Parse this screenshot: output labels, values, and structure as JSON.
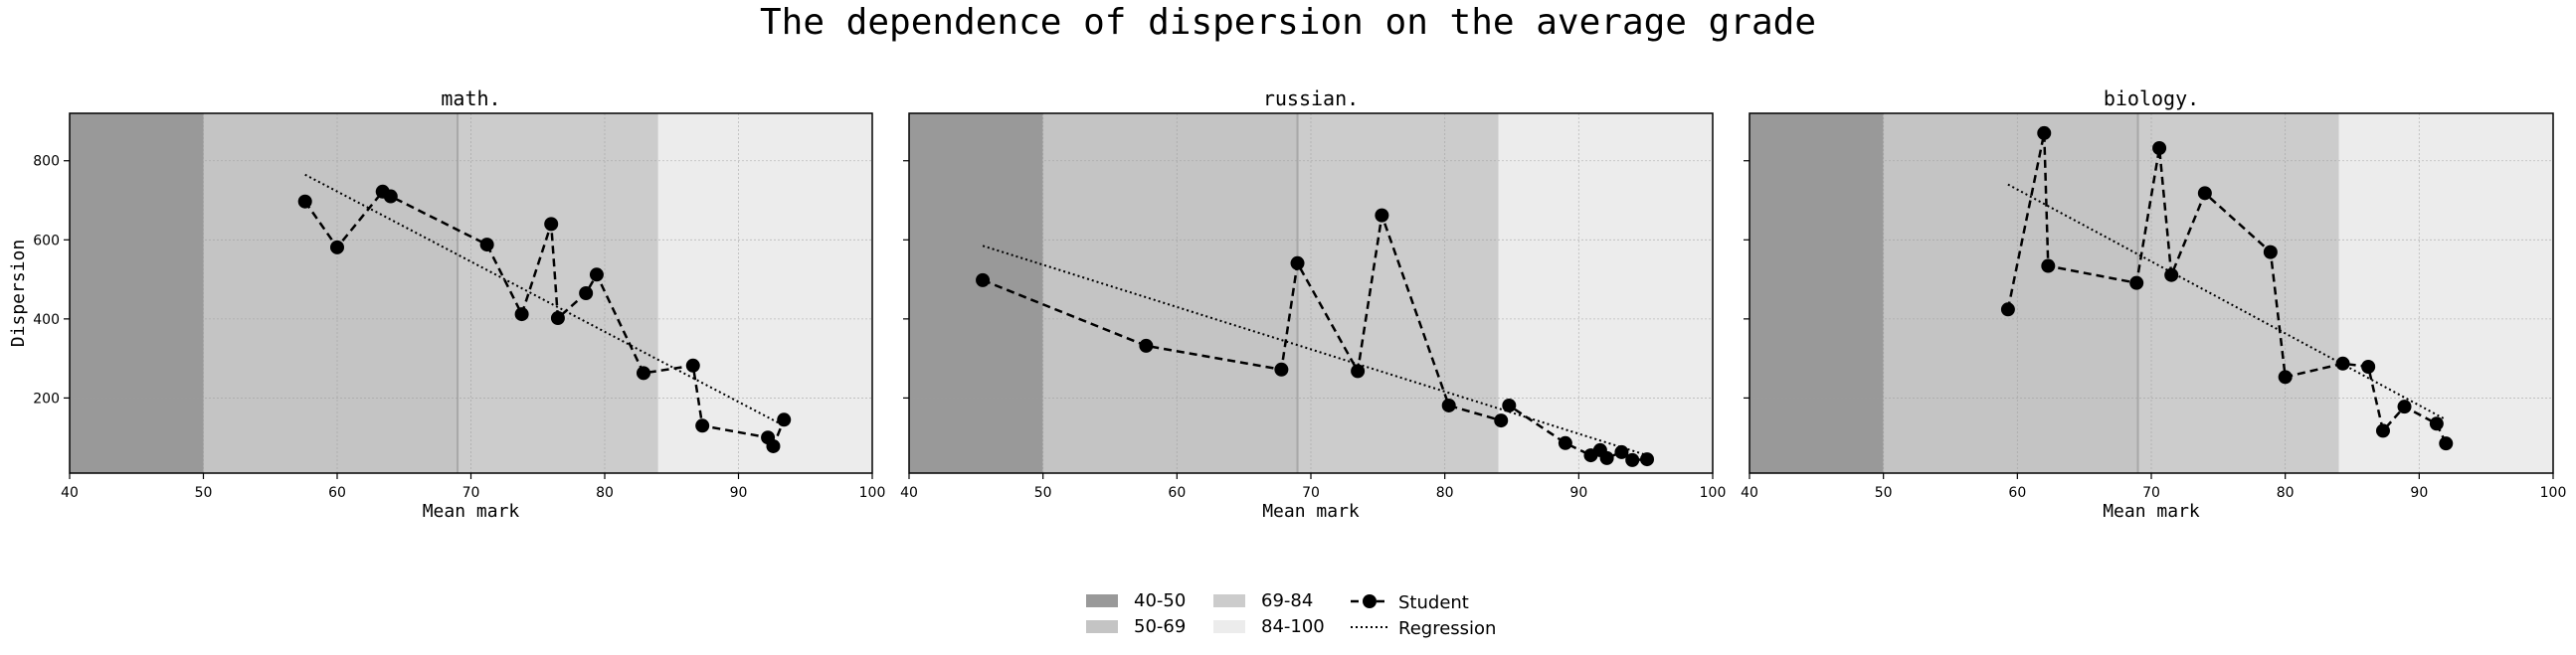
{
  "figure": {
    "title": "The dependence of dispersion on the average grade"
  },
  "legend": {
    "bands": [
      {
        "label": "40-50",
        "color": "#999999"
      },
      {
        "label": "50-69",
        "color": "#c4c4c4"
      },
      {
        "label": "69-84",
        "color": "#cccccc"
      },
      {
        "label": "84-100",
        "color": "#ececec"
      }
    ],
    "student_label": "Student",
    "regression_label": "Regression"
  },
  "chart_data": [
    {
      "type": "line",
      "title": "math.",
      "xlabel": "Mean mark",
      "ylabel": "Dispersion",
      "xlim": [
        40,
        100
      ],
      "ylim": [
        10,
        920
      ],
      "xticks": [
        40,
        50,
        60,
        70,
        80,
        90,
        100
      ],
      "yticks": [
        200,
        400,
        600,
        800
      ],
      "grid": true,
      "bands": [
        {
          "label": "40-50",
          "from": 40,
          "to": 50,
          "color": "#999999"
        },
        {
          "label": "50-69",
          "from": 50,
          "to": 69,
          "color": "#c4c4c4"
        },
        {
          "label": "69-84",
          "from": 69,
          "to": 84,
          "color": "#cccccc"
        },
        {
          "label": "84-100",
          "from": 84,
          "to": 100,
          "color": "#ececec"
        }
      ],
      "series": [
        {
          "name": "Student",
          "style": "dashed-marker",
          "x": [
            57.6,
            60.0,
            63.4,
            64.0,
            71.2,
            73.8,
            76.0,
            76.5,
            78.6,
            79.4,
            82.9,
            86.6,
            87.3,
            92.2,
            92.6,
            93.4
          ],
          "y": [
            697,
            581,
            722,
            710,
            588,
            412,
            640,
            402,
            465,
            512,
            263,
            282,
            130,
            100,
            78,
            145
          ]
        },
        {
          "name": "Regression",
          "style": "dotted",
          "x": [
            57.6,
            93.4
          ],
          "y": [
            765,
            130
          ]
        }
      ]
    },
    {
      "type": "line",
      "title": "russian.",
      "xlabel": "Mean mark",
      "ylabel": "",
      "xlim": [
        40,
        100
      ],
      "ylim": [
        10,
        920
      ],
      "xticks": [
        40,
        50,
        60,
        70,
        80,
        90,
        100
      ],
      "yticks": [
        200,
        400,
        600,
        800
      ],
      "grid": true,
      "bands": [
        {
          "label": "40-50",
          "from": 40,
          "to": 50,
          "color": "#999999"
        },
        {
          "label": "50-69",
          "from": 50,
          "to": 69,
          "color": "#c4c4c4"
        },
        {
          "label": "69-84",
          "from": 69,
          "to": 84,
          "color": "#cccccc"
        },
        {
          "label": "84-100",
          "from": 84,
          "to": 100,
          "color": "#ececec"
        }
      ],
      "series": [
        {
          "name": "Student",
          "style": "dashed-marker",
          "x": [
            45.5,
            57.7,
            67.8,
            69.0,
            73.5,
            75.3,
            80.3,
            84.2,
            84.8,
            89.0,
            90.9,
            91.6,
            92.1,
            93.2,
            94.0,
            95.1
          ],
          "y": [
            498,
            332,
            272,
            541,
            268,
            662,
            181,
            143,
            181,
            86,
            55,
            68,
            48,
            63,
            43,
            45
          ]
        },
        {
          "name": "Regression",
          "style": "dotted",
          "x": [
            45.5,
            95.1
          ],
          "y": [
            585,
            55
          ]
        }
      ]
    },
    {
      "type": "line",
      "title": "biology.",
      "xlabel": "Mean mark",
      "ylabel": "",
      "xlim": [
        40,
        100
      ],
      "ylim": [
        10,
        920
      ],
      "xticks": [
        40,
        50,
        60,
        70,
        80,
        90,
        100
      ],
      "yticks": [
        200,
        400,
        600,
        800
      ],
      "grid": true,
      "bands": [
        {
          "label": "40-50",
          "from": 40,
          "to": 50,
          "color": "#999999"
        },
        {
          "label": "50-69",
          "from": 50,
          "to": 69,
          "color": "#c4c4c4"
        },
        {
          "label": "69-84",
          "from": 69,
          "to": 84,
          "color": "#cccccc"
        },
        {
          "label": "84-100",
          "from": 84,
          "to": 100,
          "color": "#ececec"
        }
      ],
      "series": [
        {
          "name": "Student",
          "style": "dashed-marker",
          "x": [
            59.3,
            62.0,
            62.3,
            68.9,
            70.6,
            71.5,
            74.0,
            78.9,
            80.0,
            84.3,
            86.2,
            87.3,
            88.9,
            91.3,
            92.0
          ],
          "y": [
            424,
            870,
            534,
            491,
            832,
            511,
            718,
            569,
            253,
            287,
            279,
            117,
            178,
            135,
            85
          ]
        },
        {
          "name": "Regression",
          "style": "dotted",
          "x": [
            59.3,
            92.0
          ],
          "y": [
            740,
            145
          ]
        }
      ]
    }
  ]
}
